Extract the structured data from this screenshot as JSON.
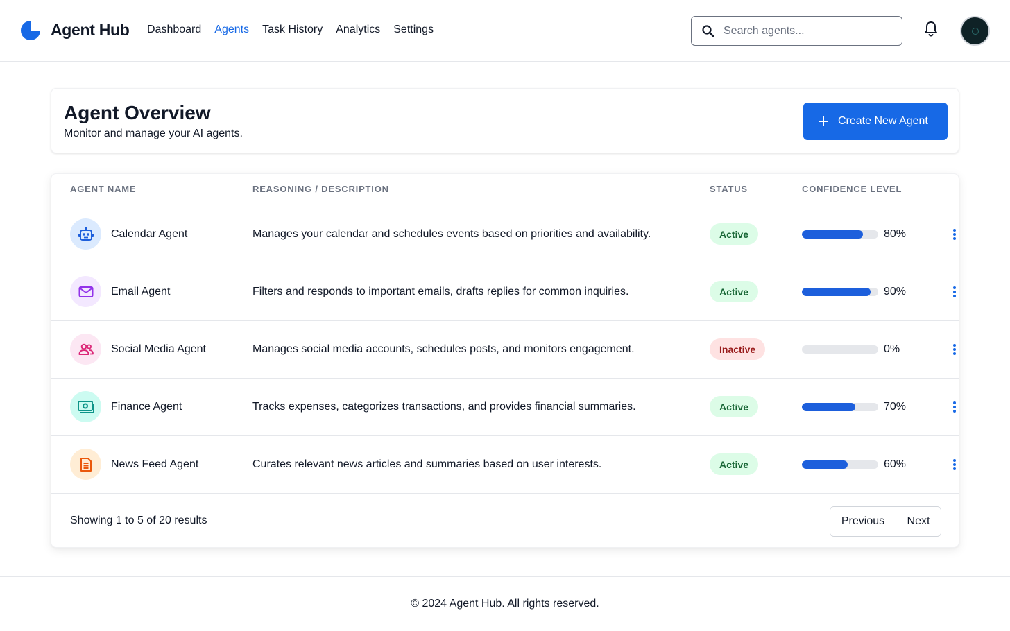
{
  "header": {
    "brand": "Agent Hub",
    "nav": [
      {
        "label": "Dashboard",
        "active": false
      },
      {
        "label": "Agents",
        "active": true
      },
      {
        "label": "Task History",
        "active": false
      },
      {
        "label": "Analytics",
        "active": false
      },
      {
        "label": "Settings",
        "active": false
      }
    ],
    "search_placeholder": "Search agents...",
    "search_value": "",
    "icons": {
      "logo": "agent-hub-logo",
      "search": "search-icon",
      "bell": "bell-icon",
      "avatar": "avatar"
    }
  },
  "overview": {
    "title": "Agent Overview",
    "subtitle": "Monitor and manage your AI agents.",
    "create_button": "Create New Agent"
  },
  "table": {
    "columns": [
      "AGENT NAME",
      "REASONING / DESCRIPTION",
      "STATUS",
      "CONFIDENCE LEVEL"
    ],
    "rows": [
      {
        "name": "Calendar Agent",
        "description": "Manages your calendar and schedules events based on priorities and availability.",
        "status": "Active",
        "confidence": 80,
        "confidence_label": "80%",
        "icon": "robot-icon",
        "icon_bg": "#dbeafe",
        "icon_color": "#1d5fdc"
      },
      {
        "name": "Email Agent",
        "description": "Filters and responds to important emails, drafts replies for common inquiries.",
        "status": "Active",
        "confidence": 90,
        "confidence_label": "90%",
        "icon": "mail-icon",
        "icon_bg": "#f3e8ff",
        "icon_color": "#9333ea"
      },
      {
        "name": "Social Media Agent",
        "description": "Manages social media accounts, schedules posts, and monitors engagement.",
        "status": "Inactive",
        "confidence": 0,
        "confidence_label": "0%",
        "icon": "users-icon",
        "icon_bg": "#fce7f3",
        "icon_color": "#db2777"
      },
      {
        "name": "Finance Agent",
        "description": "Tracks expenses, categorizes transactions, and provides financial summaries.",
        "status": "Active",
        "confidence": 70,
        "confidence_label": "70%",
        "icon": "cash-icon",
        "icon_bg": "#ccfbf1",
        "icon_color": "#0d9488"
      },
      {
        "name": "News Feed Agent",
        "description": "Curates relevant news articles and summaries based on user interests.",
        "status": "Active",
        "confidence": 60,
        "confidence_label": "60%",
        "icon": "document-icon",
        "icon_bg": "#ffedd5",
        "icon_color": "#ea580c"
      }
    ],
    "showing": "Showing 1 to 5 of 20 results",
    "prev_label": "Previous",
    "next_label": "Next"
  },
  "footer": {
    "text": "© 2024 Agent Hub. All rights reserved."
  },
  "colors": {
    "accent": "#1769e6",
    "progress": "#1d5fdc",
    "active_bg": "#dcfce7",
    "active_text": "#166534",
    "inactive_bg": "#fee2e2",
    "inactive_text": "#991b1b"
  }
}
